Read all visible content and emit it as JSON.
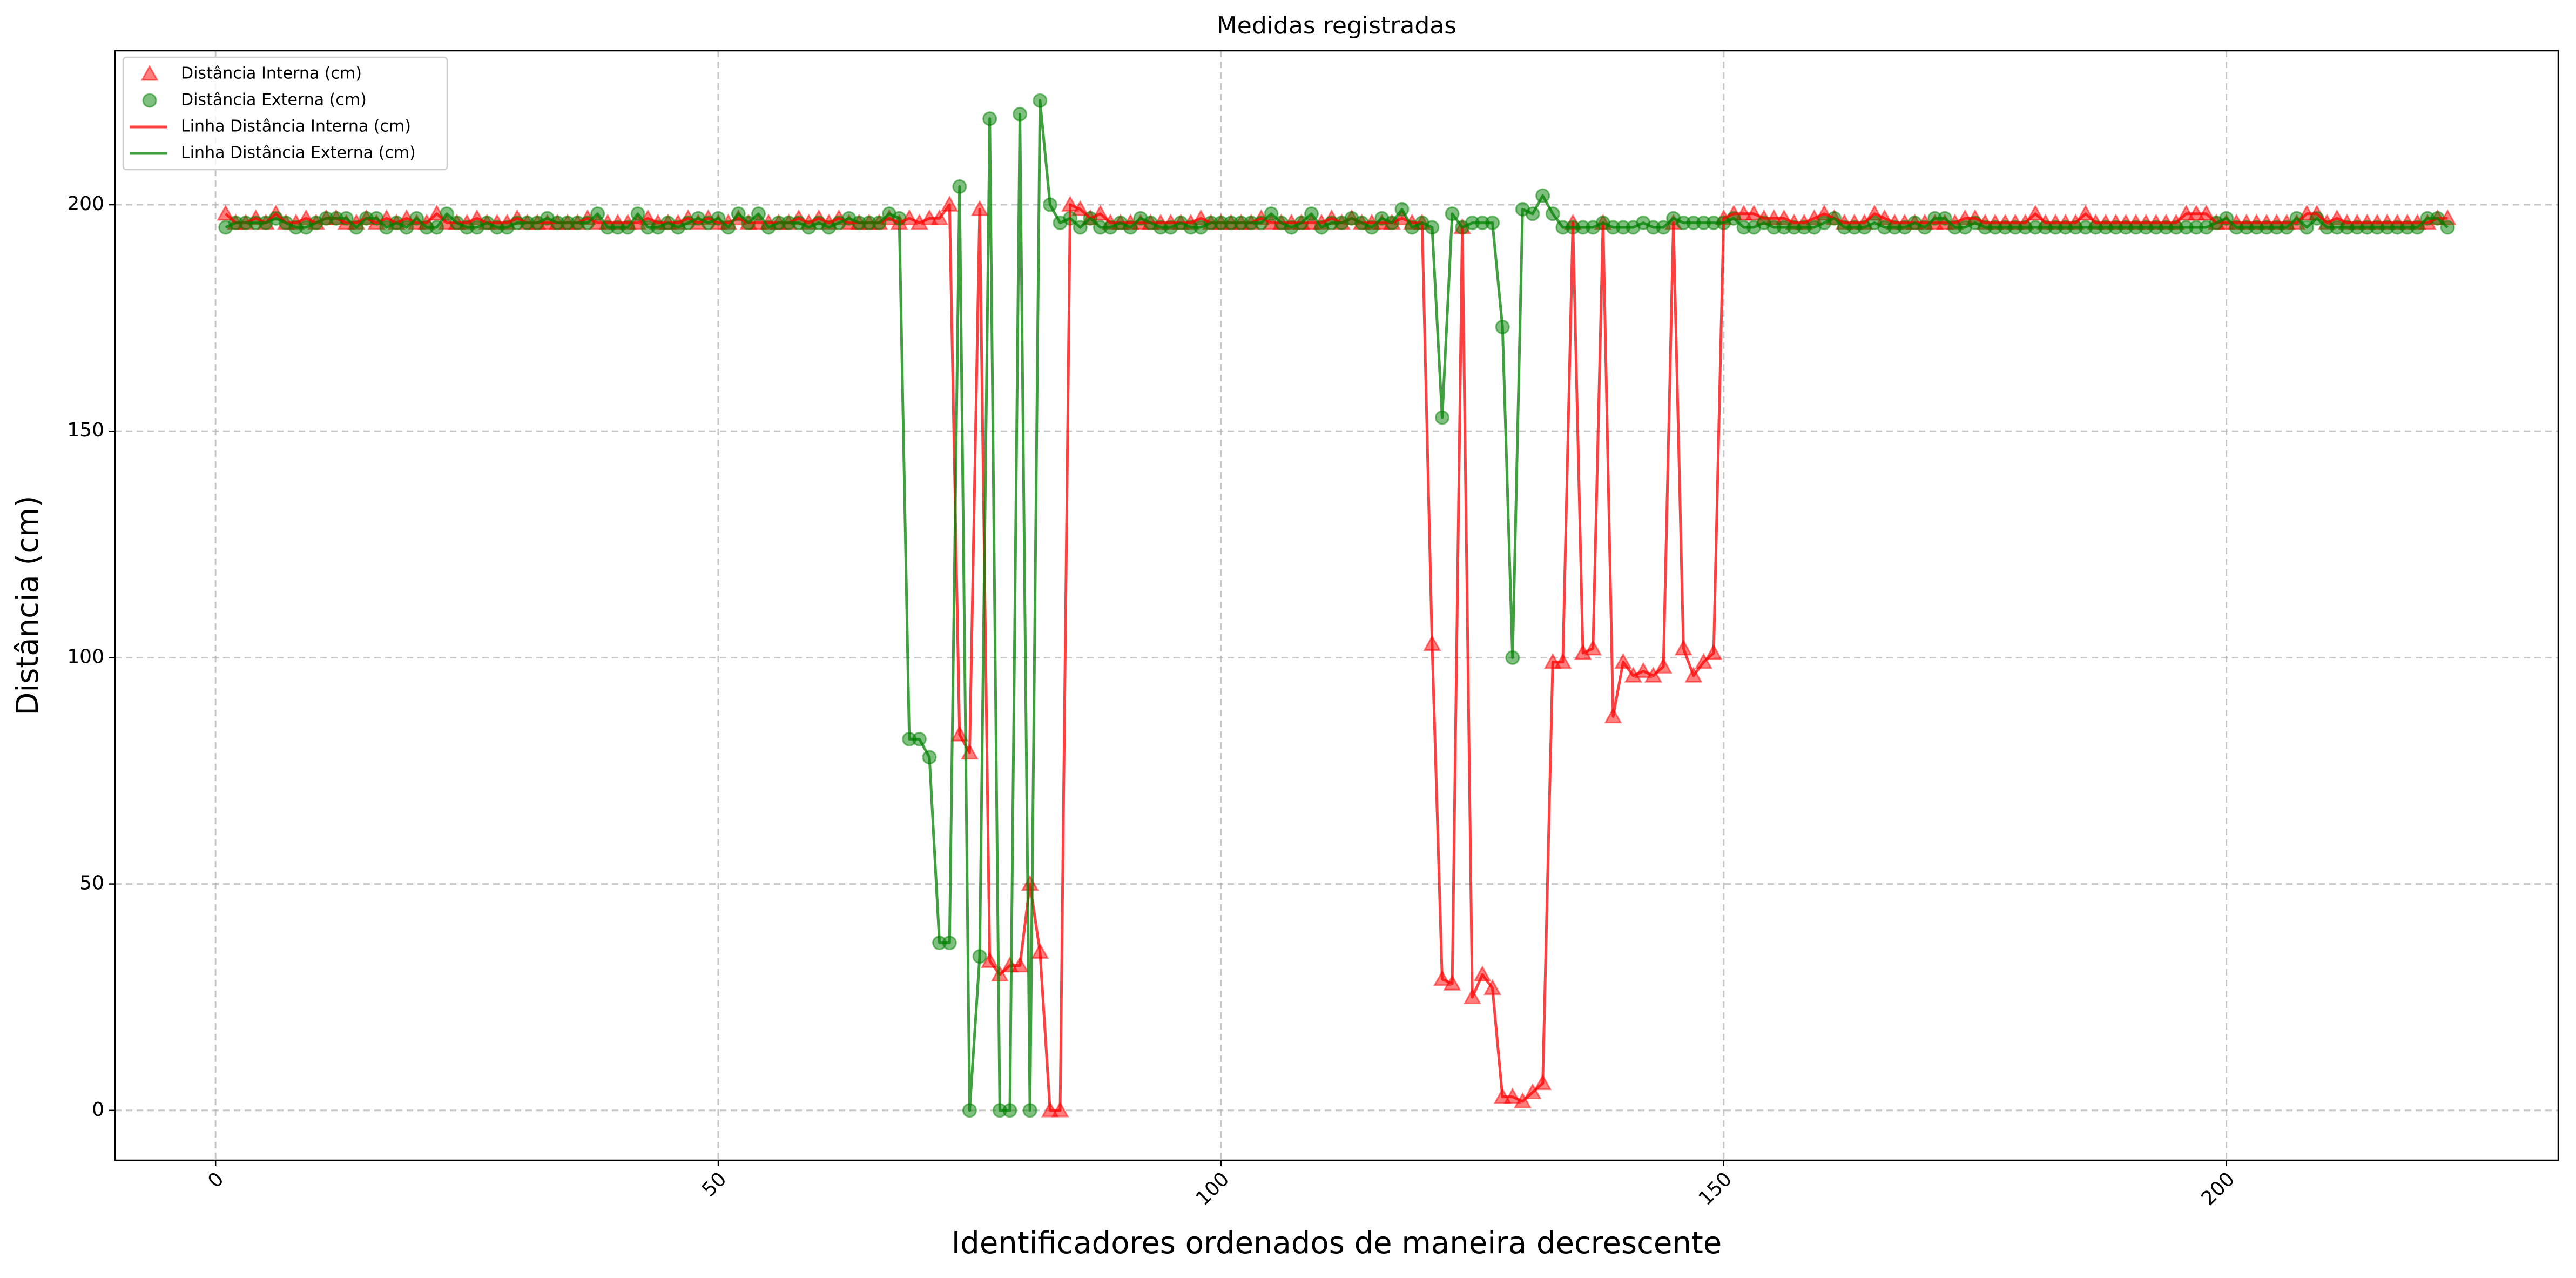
{
  "chart_data": {
    "type": "scatter_line",
    "title": "Medidas registradas",
    "xlabel": "Identificadores ordenados de maneira decrescente",
    "ylabel": "Distância (cm)",
    "xlim": [
      -10,
      233
    ],
    "ylim": [
      -11,
      234
    ],
    "xticks": [
      0,
      50,
      100,
      150,
      200
    ],
    "yticks": [
      0,
      50,
      100,
      150,
      200
    ],
    "grid": true,
    "legend": "upper left",
    "x": [
      1,
      2,
      3,
      4,
      5,
      6,
      7,
      8,
      9,
      10,
      11,
      12,
      13,
      14,
      15,
      16,
      17,
      18,
      19,
      20,
      21,
      22,
      23,
      24,
      25,
      26,
      27,
      28,
      29,
      30,
      31,
      32,
      33,
      34,
      35,
      36,
      37,
      38,
      39,
      40,
      41,
      42,
      43,
      44,
      45,
      46,
      47,
      48,
      49,
      50,
      51,
      52,
      53,
      54,
      55,
      56,
      57,
      58,
      59,
      60,
      61,
      62,
      63,
      64,
      65,
      66,
      67,
      68,
      69,
      70,
      71,
      72,
      73,
      74,
      75,
      76,
      77,
      78,
      79,
      80,
      81,
      82,
      83,
      84,
      85,
      86,
      87,
      88,
      89,
      90,
      91,
      92,
      93,
      94,
      95,
      96,
      97,
      98,
      99,
      100,
      101,
      102,
      103,
      104,
      105,
      106,
      107,
      108,
      109,
      110,
      111,
      112,
      113,
      114,
      115,
      116,
      117,
      118,
      119,
      120,
      121,
      122,
      123,
      124,
      125,
      126,
      127,
      128,
      129,
      130,
      131,
      132,
      133,
      134,
      135,
      136,
      137,
      138,
      139,
      140,
      141,
      142,
      143,
      144,
      145,
      146,
      147,
      148,
      149,
      150,
      151,
      152,
      153,
      154,
      155,
      156,
      157,
      158,
      159,
      160,
      161,
      162,
      163,
      164,
      165,
      166,
      167,
      168,
      169,
      170,
      171,
      172,
      173,
      174,
      175,
      176,
      177,
      178,
      179,
      180,
      181,
      182,
      183,
      184,
      185,
      186,
      187,
      188,
      189,
      190,
      191,
      192,
      193,
      194,
      195,
      196,
      197,
      198,
      199,
      200,
      201,
      202,
      203,
      204,
      205,
      206,
      207,
      208,
      209,
      210,
      211,
      212,
      213,
      214,
      215,
      216,
      217,
      218,
      219,
      220,
      221,
      222
    ],
    "series": [
      {
        "name": "Distância Interna (cm)",
        "line_name": "Linha Distância Interna (cm)",
        "color": "#ff0000",
        "marker": "triangle",
        "values": [
          198,
          196,
          196,
          197,
          196,
          198,
          196,
          196,
          197,
          196,
          197,
          197,
          196,
          196,
          197,
          196,
          197,
          196,
          197,
          196,
          196,
          198,
          196,
          196,
          196,
          197,
          196,
          196,
          196,
          197,
          196,
          196,
          196,
          196,
          196,
          196,
          197,
          196,
          196,
          196,
          196,
          196,
          197,
          196,
          196,
          196,
          197,
          196,
          197,
          196,
          196,
          197,
          196,
          196,
          196,
          196,
          196,
          197,
          196,
          197,
          196,
          197,
          196,
          196,
          196,
          196,
          197,
          196,
          197,
          196,
          197,
          197,
          200,
          83,
          79,
          199,
          33,
          30,
          32,
          32,
          50,
          35,
          0,
          0,
          200,
          199,
          197,
          198,
          196,
          196,
          196,
          196,
          196,
          196,
          196,
          196,
          196,
          197,
          196,
          196,
          196,
          196,
          196,
          197,
          196,
          196,
          196,
          196,
          196,
          196,
          197,
          196,
          197,
          196,
          196,
          196,
          196,
          197,
          196,
          196,
          103,
          29,
          28,
          195,
          25,
          30,
          27,
          3,
          3,
          2,
          4,
          6,
          99,
          99,
          196,
          101,
          102,
          196,
          87,
          99,
          96,
          97,
          96,
          98,
          196,
          102,
          96,
          99,
          101,
          197,
          198,
          198,
          198,
          197,
          197,
          197,
          196,
          196,
          197,
          198,
          197,
          196,
          196,
          196,
          198,
          197,
          196,
          196,
          196,
          196,
          196,
          196,
          196,
          197,
          197,
          196,
          196,
          196,
          196,
          196,
          198,
          196,
          196,
          196,
          196,
          198,
          196,
          196,
          196,
          196,
          196,
          196,
          196,
          196,
          196,
          198,
          198,
          198,
          196,
          196,
          196,
          196,
          196,
          196,
          196,
          196,
          196,
          198,
          198,
          196,
          197,
          196,
          196,
          196,
          196,
          196,
          196,
          196,
          196,
          196,
          197,
          197
        ]
      },
      {
        "name": "Distância Externa (cm)",
        "line_name": "Linha Distância Externa (cm)",
        "color": "#008000",
        "marker": "circle",
        "values": [
          195,
          196,
          196,
          196,
          196,
          197,
          196,
          195,
          195,
          196,
          197,
          197,
          197,
          195,
          197,
          197,
          195,
          196,
          195,
          197,
          195,
          195,
          198,
          196,
          195,
          195,
          196,
          195,
          195,
          196,
          196,
          196,
          197,
          196,
          196,
          196,
          196,
          198,
          195,
          195,
          195,
          198,
          195,
          195,
          196,
          195,
          196,
          197,
          196,
          197,
          195,
          198,
          196,
          198,
          195,
          196,
          196,
          196,
          195,
          196,
          195,
          196,
          197,
          196,
          196,
          196,
          198,
          197,
          82,
          82,
          78,
          37,
          37,
          204,
          0,
          34,
          219,
          0,
          0,
          220,
          0,
          223,
          200,
          196,
          197,
          195,
          197,
          195,
          195,
          196,
          195,
          197,
          196,
          195,
          195,
          196,
          195,
          195,
          196,
          196,
          196,
          196,
          196,
          196,
          198,
          196,
          195,
          196,
          198,
          195,
          196,
          196,
          197,
          196,
          195,
          197,
          196,
          199,
          195,
          196,
          195,
          153,
          198,
          195,
          196,
          196,
          196,
          173,
          100,
          199,
          198,
          202,
          198,
          195,
          195,
          195,
          195,
          196,
          195,
          195,
          195,
          196,
          195,
          195,
          197,
          196,
          196,
          196,
          196,
          196,
          197,
          195,
          195,
          196,
          195,
          195,
          195,
          195,
          195,
          196,
          197,
          195,
          195,
          195,
          196,
          195,
          195,
          195,
          196,
          195,
          197,
          197,
          195,
          195,
          196,
          195,
          195,
          195,
          195,
          195,
          195,
          195,
          195,
          195,
          195,
          195,
          195,
          195,
          195,
          195,
          195,
          195,
          195,
          195,
          195,
          195,
          195,
          195,
          196,
          197,
          195,
          195,
          195,
          195,
          195,
          195,
          197,
          195,
          197,
          195,
          195,
          195,
          195,
          195,
          195,
          195,
          195,
          195,
          195,
          197,
          197,
          195
        ]
      }
    ]
  }
}
